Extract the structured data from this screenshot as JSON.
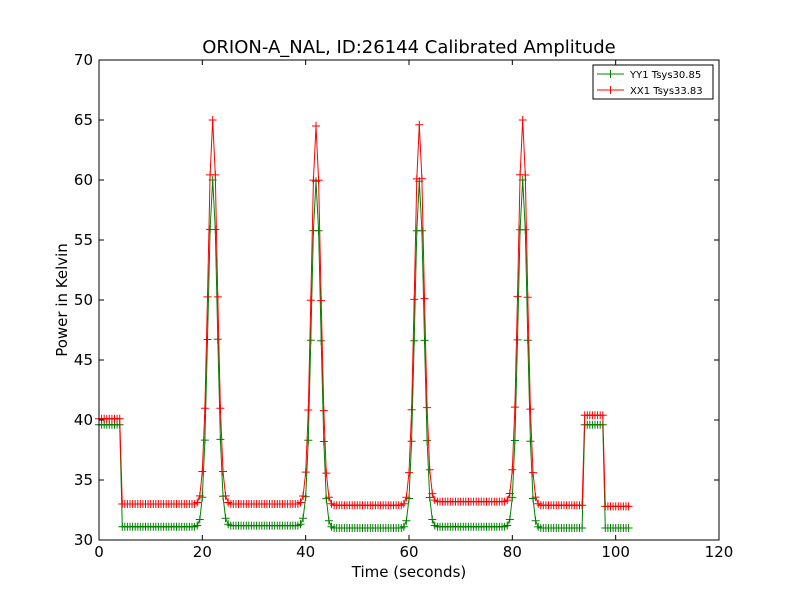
{
  "chart_data": {
    "type": "line",
    "title": "ORION-A_NAL, ID:26144 Calibrated Amplitude",
    "xlabel": "Time (seconds)",
    "ylabel": "Power in Kelvin",
    "xlim": [
      0,
      120
    ],
    "ylim": [
      30,
      70
    ],
    "xticks": [
      "0",
      "20",
      "40",
      "60",
      "80",
      "100",
      "120"
    ],
    "yticks": [
      "30",
      "35",
      "40",
      "45",
      "50",
      "55",
      "60",
      "65",
      "70"
    ],
    "grid": false,
    "legend_position": "top-right",
    "marker": "plus",
    "sample_interval": 0.5,
    "t_start": 0,
    "t_end": 102.5,
    "series": [
      {
        "name": "YY1 Tsys30.85",
        "color": "#008000",
        "segments": [
          {
            "from": 0,
            "to": 4,
            "value": 39.6
          },
          {
            "from": 4.5,
            "to": 19.5,
            "value": 31.1
          },
          {
            "from": 23.5,
            "to": 39.5,
            "value": 31.2
          },
          {
            "from": 43.5,
            "to": 59.5,
            "value": 31.0
          },
          {
            "from": 63.5,
            "to": 79.5,
            "value": 31.1
          },
          {
            "from": 83.5,
            "to": 93.5,
            "value": 31.0
          },
          {
            "from": 94,
            "to": 97.5,
            "value": 39.6
          },
          {
            "from": 98,
            "to": 102.5,
            "value": 31.0
          }
        ],
        "peaks": [
          {
            "center": 22,
            "height": 60.0,
            "width": 0.9
          },
          {
            "center": 42,
            "height": 59.9,
            "width": 0.9
          },
          {
            "center": 62,
            "height": 59.9,
            "width": 0.9
          },
          {
            "center": 82,
            "height": 60.0,
            "width": 0.9
          }
        ]
      },
      {
        "name": "XX1 Tsys33.83",
        "color": "#ff0000",
        "segments": [
          {
            "from": 0,
            "to": 4,
            "value": 40.1
          },
          {
            "from": 4.5,
            "to": 19.5,
            "value": 33.0
          },
          {
            "from": 23.5,
            "to": 39.5,
            "value": 33.0
          },
          {
            "from": 43.5,
            "to": 59.5,
            "value": 32.9
          },
          {
            "from": 63.5,
            "to": 79.5,
            "value": 33.2
          },
          {
            "from": 83.5,
            "to": 93.5,
            "value": 32.9
          },
          {
            "from": 94,
            "to": 97.5,
            "value": 40.4
          },
          {
            "from": 98,
            "to": 102.5,
            "value": 32.8
          }
        ],
        "peaks": [
          {
            "center": 22,
            "height": 65.0,
            "width": 0.9
          },
          {
            "center": 42,
            "height": 64.5,
            "width": 0.9
          },
          {
            "center": 62,
            "height": 64.6,
            "width": 0.9
          },
          {
            "center": 82,
            "height": 65.0,
            "width": 0.9
          }
        ]
      }
    ]
  }
}
